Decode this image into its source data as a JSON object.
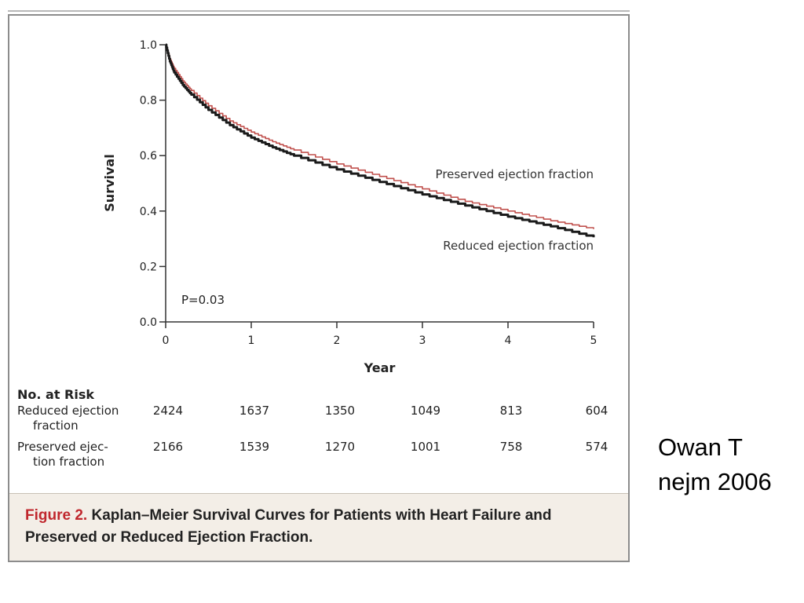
{
  "chart_data": {
    "type": "line",
    "xlabel": "Year",
    "ylabel": "Survival",
    "xlim": [
      0,
      5
    ],
    "ylim": [
      0.0,
      1.0
    ],
    "x_ticks": [
      "0",
      "1",
      "2",
      "3",
      "4",
      "5"
    ],
    "y_ticks": [
      "0.0",
      "0.2",
      "0.4",
      "0.6",
      "0.8",
      "1.0"
    ],
    "annotation": "P=0.03",
    "series": [
      {
        "name": "Preserved ejection fraction",
        "color": "#c0504d",
        "x": [
          0,
          0.05,
          0.1,
          0.2,
          0.3,
          0.5,
          0.75,
          1.0,
          1.25,
          1.5,
          2.0,
          2.5,
          3.0,
          3.5,
          4.0,
          4.5,
          5.0
        ],
        "y": [
          1.0,
          0.95,
          0.915,
          0.87,
          0.835,
          0.78,
          0.725,
          0.685,
          0.65,
          0.62,
          0.57,
          0.525,
          0.48,
          0.435,
          0.4,
          0.365,
          0.335
        ]
      },
      {
        "name": "Reduced ejection fraction",
        "color": "#1a1a1a",
        "x": [
          0,
          0.05,
          0.1,
          0.2,
          0.3,
          0.5,
          0.75,
          1.0,
          1.25,
          1.5,
          2.0,
          2.5,
          3.0,
          3.5,
          4.0,
          4.5,
          5.0
        ],
        "y": [
          1.0,
          0.94,
          0.9,
          0.855,
          0.82,
          0.765,
          0.71,
          0.665,
          0.63,
          0.6,
          0.55,
          0.505,
          0.46,
          0.42,
          0.38,
          0.345,
          0.305
        ]
      }
    ]
  },
  "risk_table": {
    "title": "No. at Risk",
    "rows": [
      {
        "label_line1": "Reduced ejection",
        "label_line2": "fraction",
        "values": [
          "2424",
          "1637",
          "1350",
          "1049",
          "813",
          "604"
        ]
      },
      {
        "label_line1": "Preserved ejec-",
        "label_line2": "tion fraction",
        "values": [
          "2166",
          "1539",
          "1270",
          "1001",
          "758",
          "574"
        ]
      }
    ]
  },
  "caption": {
    "figure_number": "Figure 2.",
    "text": "Kaplan–Meier Survival Curves for Patients with Heart Failure and Preserved or Reduced Ejection Fraction."
  },
  "citation": {
    "line1": "Owan T",
    "line2": "nejm 2006"
  }
}
